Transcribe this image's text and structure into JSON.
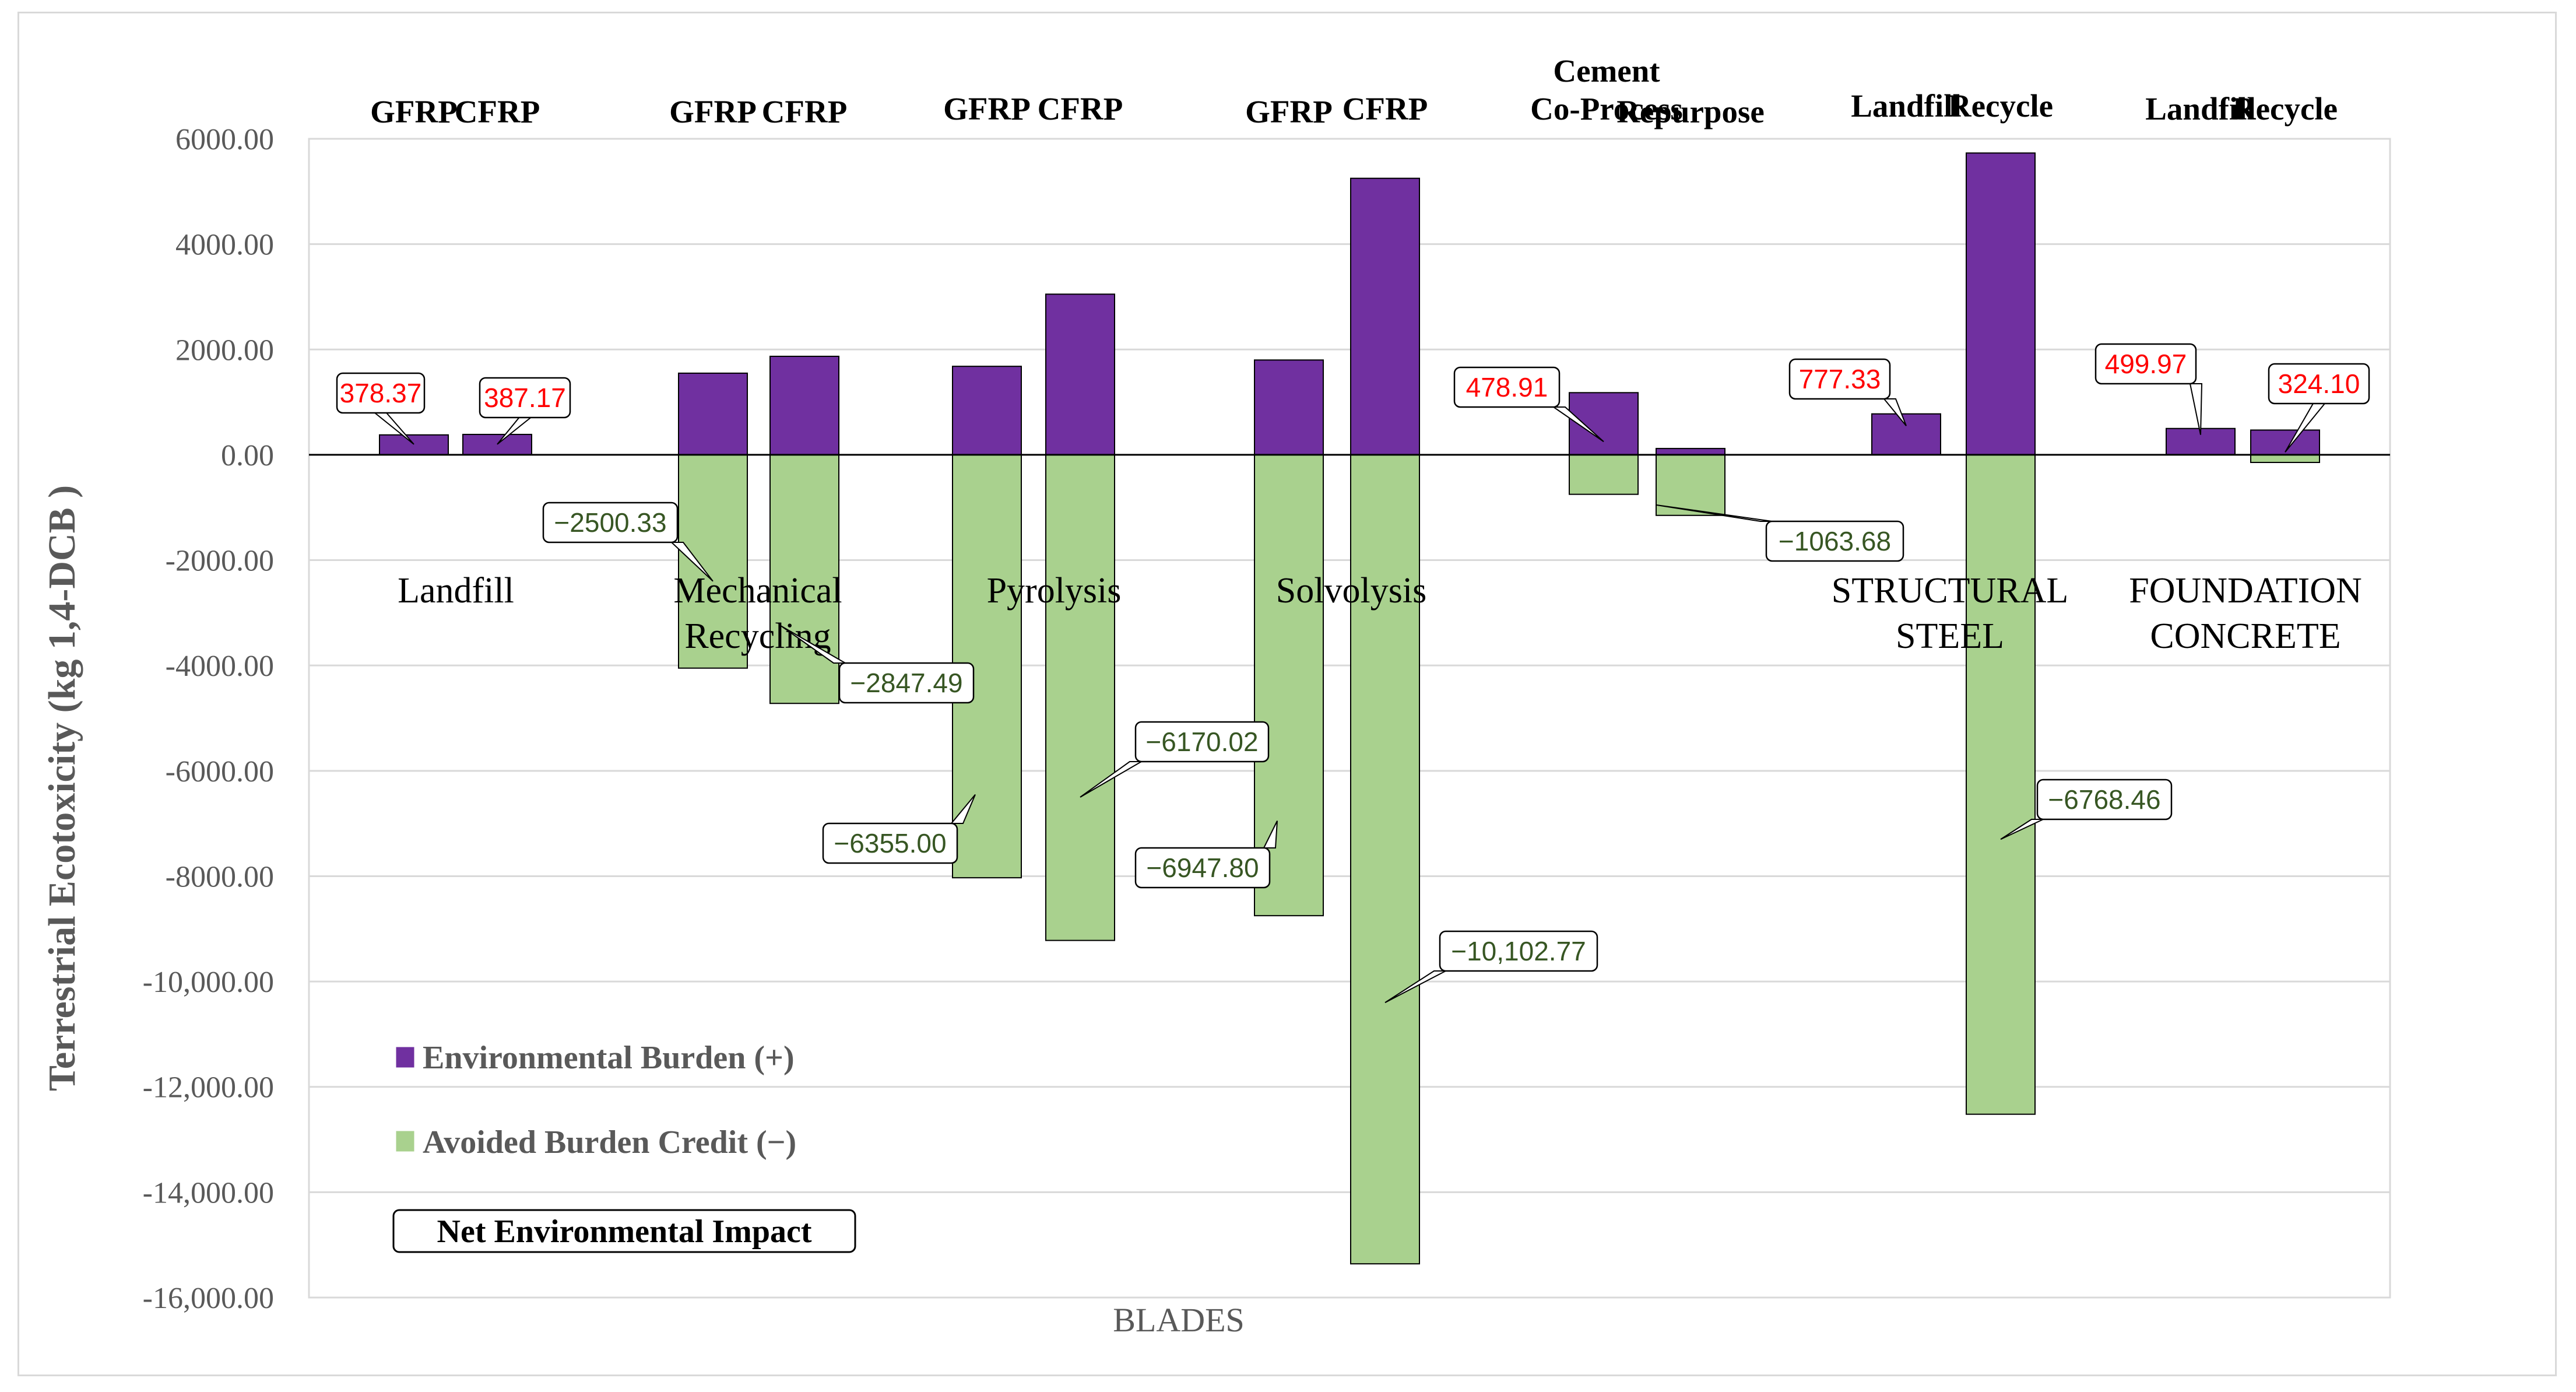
{
  "chart_data": {
    "type": "bar",
    "ylabel": "Terrestrial Ecotoxicity  (kg 1,4-DCB )",
    "xlabel": "BLADES",
    "ylim": [
      -16000,
      6000
    ],
    "ytick_values": [
      6000,
      4000,
      2000,
      0,
      -2000,
      -4000,
      -6000,
      -8000,
      -10000,
      -12000,
      -14000,
      -16000
    ],
    "ytick_labels": [
      "6000.00",
      "4000.00",
      "2000.00",
      "0.00",
      "-2000.00",
      "-4000.00",
      "-6000.00",
      "-8000.00",
      "-10,000.00",
      "-12,000.00",
      "-14,000.00",
      "-16,000.00"
    ],
    "series": [
      {
        "name": "Environmental Burden (+)",
        "color": "#7030a0"
      },
      {
        "name": "Avoided Burden Credit (−)",
        "color": "#a9d18e"
      }
    ],
    "legend_extra": "Net Environmental Impact",
    "bars": [
      {
        "category": "GFRP",
        "burden": 378.37,
        "credit": 0
      },
      {
        "category": "CFRP",
        "burden": 387.17,
        "credit": 0
      },
      {
        "category": "GFRP",
        "burden": 1550,
        "credit": -4050
      },
      {
        "category": "CFRP",
        "burden": 1870,
        "credit": -4720
      },
      {
        "category": "GFRP",
        "burden": 1680,
        "credit": -8030
      },
      {
        "category": "CFRP",
        "burden": 3050,
        "credit": -9220
      },
      {
        "category": "GFRP",
        "burden": 1800,
        "credit": -8750
      },
      {
        "category": "CFRP",
        "burden": 5250,
        "credit": -15360
      },
      {
        "category": "Cement Co-Process",
        "burden": 1180,
        "credit": -750
      },
      {
        "category": "Repurpose",
        "burden": 120,
        "credit": -1150
      },
      {
        "category": "Landfill",
        "burden": 777.33,
        "credit": 0
      },
      {
        "category": "Recycle",
        "burden": 5730,
        "credit": -12520
      },
      {
        "category": "Landfill",
        "burden": 499.97,
        "credit": 0
      },
      {
        "category": "Recycle",
        "burden": 470,
        "credit": -145
      }
    ],
    "group_labels": [
      {
        "lines": [
          "Landfill"
        ]
      },
      {
        "lines": [
          "Mechanical",
          "Recycling"
        ]
      },
      {
        "lines": [
          "Pyrolysis"
        ]
      },
      {
        "lines": [
          "Solvolysis"
        ]
      },
      {
        "lines": [
          "STRUCTURAL",
          "STEEL"
        ]
      },
      {
        "lines": [
          "FOUNDATION",
          "CONCRETE"
        ]
      }
    ],
    "category_headers": [
      {
        "lines": [
          "GFRP"
        ]
      },
      {
        "lines": [
          "CFRP"
        ]
      },
      {
        "lines": [
          "GFRP"
        ]
      },
      {
        "lines": [
          "CFRP"
        ]
      },
      {
        "lines": [
          "GFRP"
        ]
      },
      {
        "lines": [
          "CFRP"
        ]
      },
      {
        "lines": [
          "GFRP"
        ]
      },
      {
        "lines": [
          "CFRP"
        ]
      },
      {
        "lines": [
          "Cement",
          "Co-Process"
        ]
      },
      {
        "lines": [
          "Repurpose"
        ]
      },
      {
        "lines": [
          "Landfill"
        ]
      },
      {
        "lines": [
          "Recycle"
        ]
      },
      {
        "lines": [
          "Landfill"
        ]
      },
      {
        "lines": [
          "Recycle"
        ]
      }
    ],
    "callouts": [
      {
        "text": "378.37",
        "kind": "burden",
        "bar": 0,
        "anchor_value": 200
      },
      {
        "text": "387.17",
        "kind": "burden",
        "bar": 1,
        "anchor_value": 200
      },
      {
        "text": "−2500.33",
        "kind": "credit",
        "bar": 2,
        "anchor_value": -2400
      },
      {
        "text": "−2847.49",
        "kind": "credit",
        "bar": 3,
        "anchor_value": -3250
      },
      {
        "text": "−6355.00",
        "kind": "credit",
        "bar": 4,
        "anchor_value": -6450
      },
      {
        "text": "−6170.02",
        "kind": "credit",
        "bar": 5,
        "anchor_value": -6500
      },
      {
        "text": "−6947.80",
        "kind": "credit",
        "bar": 6,
        "anchor_value": -6950
      },
      {
        "text": "−10,102.77",
        "kind": "credit",
        "bar": 7,
        "anchor_value": -10400
      },
      {
        "text": "478.91",
        "kind": "burden",
        "bar": 8,
        "anchor_value": 250
      },
      {
        "text": "−1063.68",
        "kind": "credit",
        "bar": 9,
        "anchor_value": -950
      },
      {
        "text": "777.33",
        "kind": "burden",
        "bar": 10,
        "anchor_value": 550
      },
      {
        "text": "−6768.46",
        "kind": "credit",
        "bar": 11,
        "anchor_value": -7300
      },
      {
        "text": "499.97",
        "kind": "burden",
        "bar": 12,
        "anchor_value": 380
      },
      {
        "text": "324.10",
        "kind": "burden",
        "bar": 13,
        "anchor_value": 50
      }
    ],
    "label_colors": {
      "burden": "#ff0000",
      "credit": "#375623"
    }
  }
}
